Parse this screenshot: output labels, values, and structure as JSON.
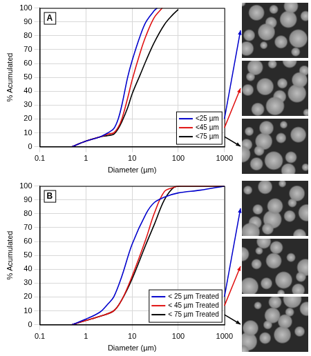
{
  "chart_data": [
    {
      "type": "line",
      "title": "A",
      "x_label": "Diameter (µm)",
      "y_label": "% Acumulated",
      "log": "x",
      "xlim": [
        0.1,
        1000
      ],
      "xticks": [
        0.1,
        1,
        10,
        100,
        1000
      ],
      "ylim": [
        0,
        100
      ],
      "yticks": [
        0,
        10,
        20,
        30,
        40,
        50,
        60,
        70,
        80,
        90,
        100
      ],
      "grid": true,
      "legend": "lower right",
      "series": [
        {
          "name": "<25 µm",
          "color": "#0000cc",
          "x": [
            0.5,
            1,
            2,
            3,
            4,
            5,
            6,
            8,
            10,
            15,
            20,
            30,
            35
          ],
          "values": [
            0,
            4,
            7,
            10,
            13,
            20,
            30,
            50,
            62,
            80,
            90,
            98,
            100
          ]
        },
        {
          "name": "<45 µm",
          "color": "#e01010",
          "x": [
            0.5,
            1,
            2,
            3,
            4,
            5,
            6,
            8,
            10,
            15,
            20,
            30,
            45
          ],
          "values": [
            0,
            4,
            7,
            9,
            10,
            14,
            20,
            35,
            48,
            68,
            80,
            93,
            100
          ]
        },
        {
          "name": "<75 µm",
          "color": "#000000",
          "x": [
            0.5,
            1,
            2,
            3,
            4,
            5,
            6,
            8,
            10,
            15,
            20,
            30,
            50,
            75,
            100
          ],
          "values": [
            0,
            4,
            7,
            8,
            9,
            13,
            18,
            28,
            38,
            52,
            62,
            75,
            88,
            95,
            99
          ]
        }
      ]
    },
    {
      "type": "line",
      "title": "B",
      "x_label": "Diameter (µm)",
      "y_label": "% Acumulated",
      "log": "x",
      "xlim": [
        0.1,
        1000
      ],
      "xticks": [
        0.1,
        1,
        10,
        100,
        1000
      ],
      "ylim": [
        0,
        100
      ],
      "yticks": [
        0,
        10,
        20,
        30,
        40,
        50,
        60,
        70,
        80,
        90,
        100
      ],
      "grid": true,
      "legend": "lower right",
      "series": [
        {
          "name": "< 25 µm Treated",
          "color": "#0000cc",
          "x": [
            0.5,
            1,
            2,
            3,
            4,
            6,
            10,
            20,
            30,
            50,
            100,
            300,
            1000
          ],
          "values": [
            0,
            4,
            9,
            15,
            20,
            35,
            58,
            80,
            88,
            92,
            95,
            97,
            100
          ]
        },
        {
          "name": "< 45 µm Treated",
          "color": "#e01010",
          "x": [
            0.5,
            1,
            2,
            4,
            6,
            10,
            20,
            30,
            50,
            80,
            100,
            1000
          ],
          "values": [
            0,
            3,
            6,
            10,
            18,
            35,
            62,
            80,
            96,
            99,
            100,
            100
          ]
        },
        {
          "name": "< 75 µm Treated",
          "color": "#000000",
          "x": [
            0.5,
            1,
            2,
            4,
            6,
            10,
            20,
            30,
            50,
            80,
            120,
            1000
          ],
          "values": [
            0,
            3,
            6,
            10,
            18,
            33,
            58,
            72,
            90,
            99,
            100,
            100
          ]
        }
      ]
    }
  ]
}
